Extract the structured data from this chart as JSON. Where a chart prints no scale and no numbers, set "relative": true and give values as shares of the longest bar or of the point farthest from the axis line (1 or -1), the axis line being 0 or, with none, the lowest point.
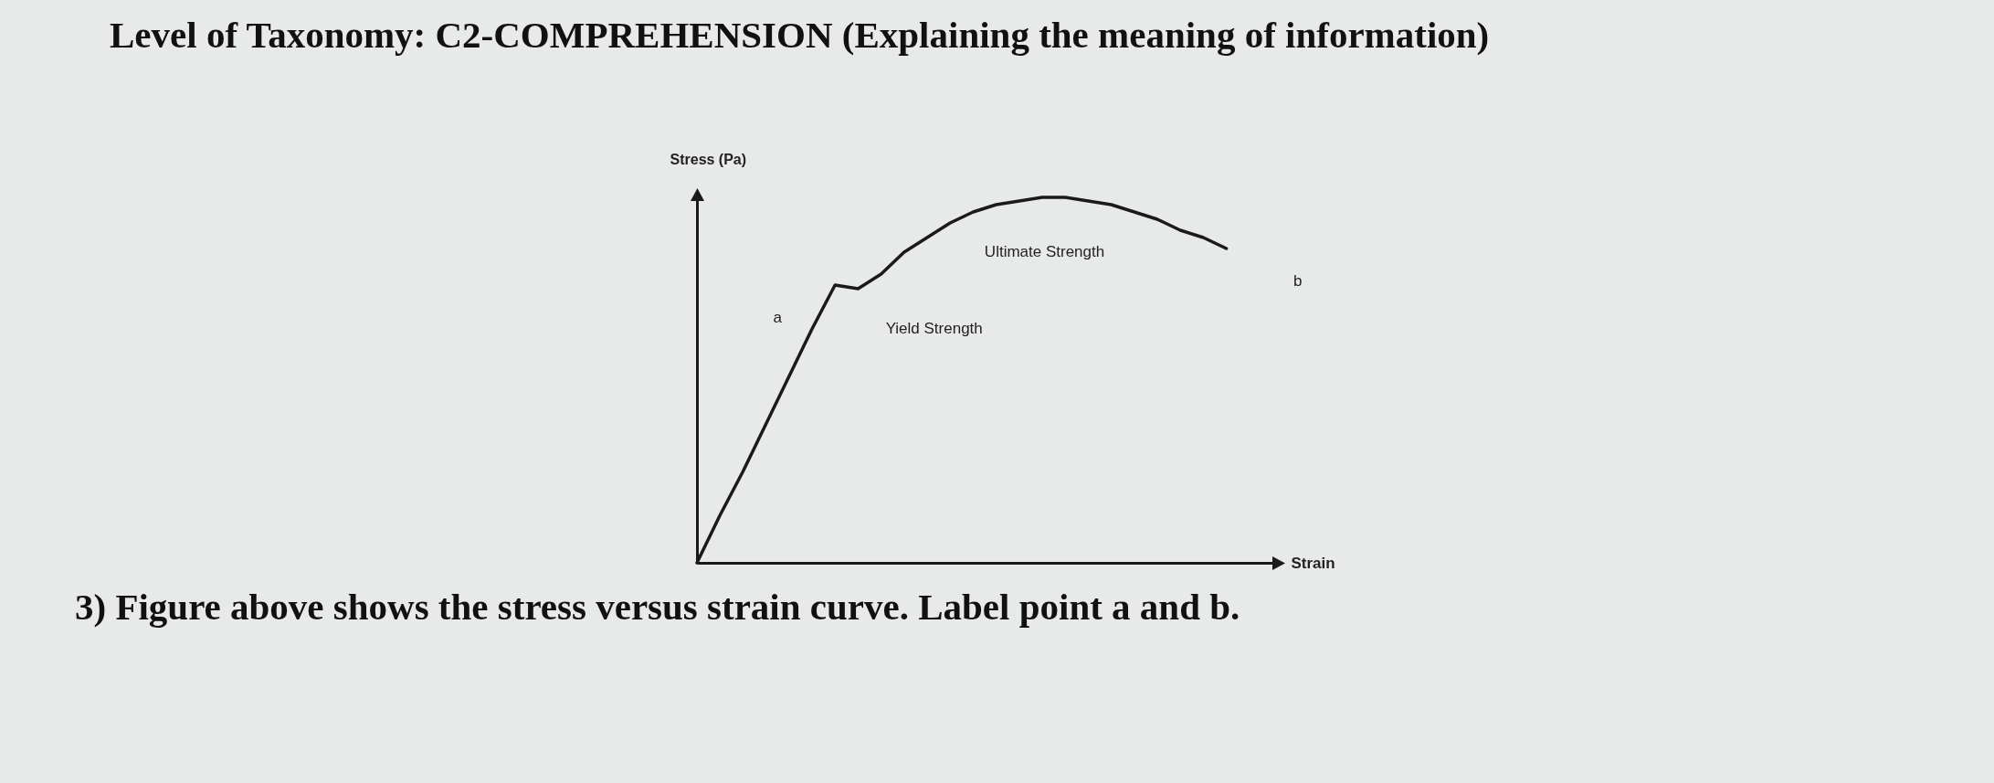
{
  "chart_data": {
    "type": "line",
    "title": "Level of Taxonomy: C2-COMPREHENSION (Explaining the meaning of information)",
    "xlabel": "Strain",
    "ylabel": "Stress (Pa)",
    "relative": true,
    "grid": false,
    "marker": "none",
    "line_style": "solid",
    "categories": [
      null,
      null,
      null,
      null,
      null,
      null,
      null,
      null,
      null,
      null,
      null,
      null,
      null,
      null,
      null,
      null,
      null,
      null,
      null,
      null,
      null,
      null,
      null,
      null,
      null,
      null
    ],
    "series": [
      {
        "color": "#1a1a1a",
        "values": [
          0,
          0.13,
          0.25,
          0.38,
          0.51,
          0.64,
          0.76,
          0.75,
          0.79,
          0.85,
          0.89,
          0.93,
          0.96,
          0.98,
          0.99,
          1,
          1,
          0.99,
          0.98,
          0.96,
          0.94,
          0.91,
          0.89,
          0.86,
          null,
          null
        ]
      }
    ],
    "annotations": [
      "a",
      "Yield Strength",
      "Ultimate Strength",
      "b",
      "3) Figure above shows the stress versus strain curve. Label point a and b."
    ]
  }
}
